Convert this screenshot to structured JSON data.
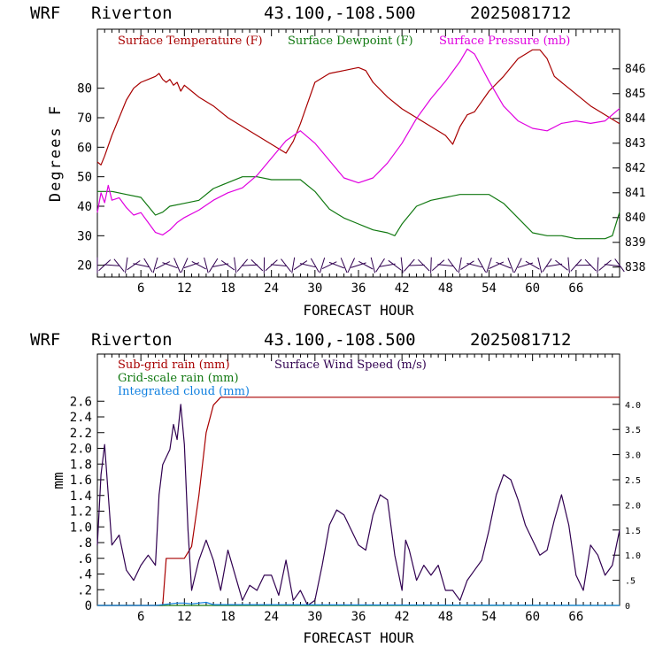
{
  "chart_data": [
    {
      "type": "line",
      "header": {
        "model": "WRF",
        "station": "Riverton",
        "coords": "43.100,-108.500",
        "init": "2025081712"
      },
      "xlabel": "FORECAST HOUR",
      "ylabel": "Degrees F",
      "xlim": [
        0,
        72
      ],
      "ylim": [
        16,
        100
      ],
      "y2lim": [
        837.6,
        847.6
      ],
      "x_ticks": [
        6,
        12,
        18,
        24,
        30,
        36,
        42,
        48,
        54,
        60,
        66
      ],
      "y_ticks": [
        20,
        30,
        40,
        50,
        60,
        70,
        80
      ],
      "y2_ticks": [
        838,
        839,
        840,
        841,
        842,
        843,
        844,
        845,
        846
      ],
      "series": [
        {
          "name": "Surface Temperature (F)",
          "color": "#a80000",
          "axis": "left",
          "x": [
            0,
            0.5,
            1,
            2,
            3,
            4,
            5,
            6,
            7,
            8,
            8.5,
            9,
            9.5,
            10,
            10.5,
            11,
            11.5,
            12,
            13,
            14,
            16,
            18,
            20,
            22,
            24,
            26,
            27,
            28,
            29,
            30,
            32,
            34,
            36,
            37,
            38,
            40,
            42,
            44,
            46,
            48,
            49,
            50,
            51,
            52,
            54,
            56,
            58,
            60,
            61,
            62,
            63,
            64,
            66,
            68,
            70,
            72
          ],
          "y": [
            55,
            54,
            57,
            64,
            70,
            76,
            80,
            82,
            83,
            84,
            85,
            83,
            82,
            83,
            81,
            82,
            79,
            81,
            79,
            77,
            74,
            70,
            67,
            64,
            61,
            58,
            62,
            68,
            75,
            82,
            85,
            86,
            87,
            86,
            82,
            77,
            73,
            70,
            67,
            64,
            61,
            67,
            71,
            72,
            79,
            84,
            90,
            93,
            93,
            90,
            84,
            82,
            78,
            74,
            71,
            68
          ]
        },
        {
          "name": "Surface Dewpoint (F)",
          "color": "#107810",
          "axis": "left",
          "x": [
            0,
            2,
            4,
            6,
            7,
            8,
            9,
            10,
            12,
            14,
            16,
            18,
            20,
            22,
            24,
            26,
            28,
            30,
            32,
            34,
            36,
            38,
            40,
            41,
            42,
            44,
            46,
            48,
            50,
            52,
            54,
            56,
            58,
            60,
            62,
            64,
            66,
            68,
            70,
            71,
            72
          ],
          "y": [
            45,
            45,
            44,
            43,
            40,
            37,
            38,
            40,
            41,
            42,
            46,
            48,
            50,
            50,
            49,
            49,
            49,
            45,
            39,
            36,
            34,
            32,
            31,
            30,
            34,
            40,
            42,
            43,
            44,
            44,
            44,
            41,
            36,
            31,
            30,
            30,
            29,
            29,
            29,
            30,
            38
          ]
        },
        {
          "name": "Surface Pressure (mb)",
          "color": "#e000e0",
          "axis": "right",
          "x": [
            0,
            0.5,
            1,
            1.5,
            2,
            3,
            4,
            5,
            6,
            7,
            8,
            9,
            10,
            11,
            12,
            14,
            16,
            18,
            20,
            22,
            24,
            26,
            28,
            30,
            32,
            34,
            36,
            38,
            40,
            42,
            44,
            46,
            48,
            50,
            51,
            52,
            54,
            56,
            58,
            60,
            62,
            64,
            66,
            68,
            70,
            72
          ],
          "y": [
            840.2,
            841.0,
            840.6,
            841.3,
            840.7,
            840.8,
            840.4,
            840.1,
            840.2,
            839.8,
            839.4,
            839.3,
            839.5,
            839.8,
            840.0,
            840.3,
            840.7,
            841.0,
            841.2,
            841.7,
            842.4,
            843.1,
            843.5,
            843.0,
            842.3,
            841.6,
            841.4,
            841.6,
            842.2,
            843.0,
            844.0,
            844.8,
            845.5,
            846.3,
            846.8,
            846.6,
            845.5,
            844.5,
            843.9,
            843.6,
            843.5,
            843.8,
            843.9,
            843.8,
            843.9,
            844.4
          ]
        }
      ],
      "wind_barbs": {
        "y": 20,
        "hours": [
          0,
          1,
          2,
          3,
          4,
          5,
          6,
          7,
          8,
          9,
          10,
          11,
          12,
          13,
          14,
          15,
          16,
          17,
          18,
          19,
          20,
          21,
          22,
          23,
          24,
          25,
          26,
          27,
          28,
          29,
          30,
          31,
          32,
          33,
          34,
          35,
          36,
          37,
          38,
          39,
          40,
          41,
          42,
          43,
          44,
          45,
          46,
          47,
          48,
          49,
          50,
          51,
          52,
          53,
          54,
          55,
          56,
          57,
          58,
          59,
          60,
          61,
          62,
          63,
          64,
          65,
          66,
          67,
          68,
          69,
          70,
          71,
          72
        ]
      },
      "legend": "top"
    },
    {
      "type": "line",
      "header": {
        "model": "WRF",
        "station": "Riverton",
        "coords": "43.100,-108.500",
        "init": "2025081712"
      },
      "xlabel": "FORECAST HOUR",
      "ylabel": "mm",
      "xlim": [
        0,
        72
      ],
      "ylim": [
        0,
        3.2
      ],
      "y2lim": [
        0,
        5.0
      ],
      "x_ticks": [
        6,
        12,
        18,
        24,
        30,
        36,
        42,
        48,
        54,
        60,
        66
      ],
      "y_ticks": [
        0,
        0.2,
        0.4,
        0.6,
        0.8,
        1.0,
        1.2,
        1.4,
        1.6,
        1.8,
        2.0,
        2.2,
        2.4,
        2.6
      ],
      "y_tick_labels": [
        "0",
        ".2",
        ".4",
        ".6",
        ".8",
        "1.0",
        "1.2",
        "1.4",
        "1.6",
        "1.8",
        "2.0",
        "2.2",
        "2.4",
        "2.6"
      ],
      "y2_ticks": [
        0,
        0.5,
        1.0,
        1.5,
        2.0,
        2.5,
        3.0,
        3.5,
        4.0
      ],
      "y2_tick_labels": [
        "0",
        ".5",
        "1.0",
        "1.5",
        "2.0",
        "2.5",
        "3.0",
        "3.5",
        "4.0"
      ],
      "series": [
        {
          "name": "Sub-grid rain (mm)",
          "color": "#a80000",
          "axis": "left",
          "x": [
            0,
            9,
            9.5,
            12,
            13,
            14,
            15,
            16,
            17,
            18,
            72
          ],
          "y": [
            0,
            0,
            0.6,
            0.6,
            0.75,
            1.4,
            2.2,
            2.55,
            2.65,
            2.65,
            2.65
          ]
        },
        {
          "name": "Surface Wind Speed (m/s)",
          "color": "#300050",
          "axis": "right",
          "x": [
            0,
            0.5,
            1,
            1.5,
            2,
            3,
            4,
            5,
            6,
            7,
            8,
            8.5,
            9,
            10,
            10.5,
            11,
            11.5,
            12,
            12.5,
            13,
            14,
            15,
            16,
            17,
            18,
            19,
            20,
            21,
            22,
            23,
            24,
            25,
            26,
            27,
            28,
            29,
            30,
            31,
            32,
            33,
            34,
            35,
            36,
            37,
            38,
            39,
            40,
            41,
            42,
            42.5,
            43,
            44,
            45,
            46,
            47,
            48,
            49,
            50,
            51,
            52,
            53,
            54,
            55,
            56,
            57,
            58,
            59,
            60,
            61,
            62,
            63,
            64,
            65,
            66,
            67,
            68,
            69,
            70,
            71,
            72
          ],
          "y": [
            1.2,
            2.6,
            3.2,
            2.2,
            1.2,
            1.4,
            0.7,
            0.5,
            0.8,
            1.0,
            0.8,
            2.2,
            2.8,
            3.1,
            3.6,
            3.3,
            4.0,
            3.2,
            1.5,
            0.3,
            0.9,
            1.3,
            0.9,
            0.3,
            1.1,
            0.6,
            0.1,
            0.4,
            0.3,
            0.6,
            0.6,
            0.2,
            0.9,
            0.1,
            0.3,
            0.0,
            0.1,
            0.8,
            1.6,
            1.9,
            1.8,
            1.5,
            1.2,
            1.1,
            1.8,
            2.2,
            2.1,
            1.0,
            0.3,
            1.3,
            1.1,
            0.5,
            0.8,
            0.6,
            0.8,
            0.3,
            0.3,
            0.1,
            0.5,
            0.7,
            0.9,
            1.5,
            2.2,
            2.6,
            2.5,
            2.1,
            1.6,
            1.3,
            1.0,
            1.1,
            1.7,
            2.2,
            1.6,
            0.6,
            0.3,
            1.2,
            1.0,
            0.6,
            0.8,
            1.5
          ]
        },
        {
          "name": "Grid-scale rain (mm)",
          "color": "#107810",
          "axis": "left",
          "x": [
            0,
            72
          ],
          "y": [
            0,
            0
          ]
        },
        {
          "name": "Integrated cloud (mm)",
          "color": "#1080e0",
          "axis": "left",
          "x": [
            0,
            8,
            9,
            10,
            11,
            12,
            13,
            14,
            15,
            16,
            72
          ],
          "y": [
            0,
            0,
            0.01,
            0.02,
            0.03,
            0.03,
            0.02,
            0.03,
            0.04,
            0.01,
            0
          ]
        }
      ],
      "legend": "top-left"
    }
  ]
}
